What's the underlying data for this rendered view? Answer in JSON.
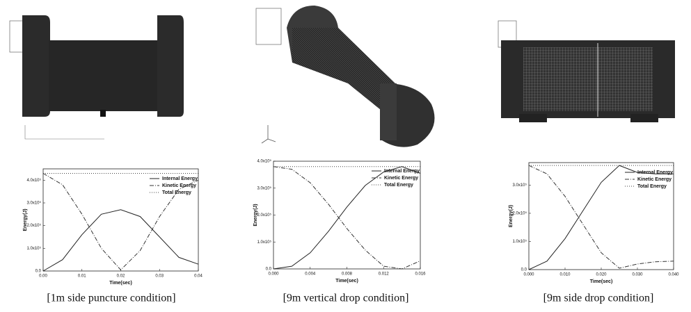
{
  "chart_data": [
    {
      "type": "line",
      "caption": "[1m side puncture condition]",
      "xlabel": "Time(sec)",
      "ylabel": "Energy(J)",
      "x": [
        0,
        0.005,
        0.01,
        0.015,
        0.02,
        0.025,
        0.03,
        0.035,
        0.04
      ],
      "xlim": [
        0,
        0.04
      ],
      "xticks": [
        {
          "value": 0,
          "label": "0.00"
        },
        {
          "value": 0.01,
          "label": "0.01"
        },
        {
          "value": 0.02,
          "label": "0.02"
        },
        {
          "value": 0.03,
          "label": "0.03"
        },
        {
          "value": 0.04,
          "label": "0.04"
        }
      ],
      "ylim": [
        0,
        450000
      ],
      "yticks": [
        {
          "value": 0,
          "label": "0.0"
        },
        {
          "value": 100000,
          "label": "1.0x10⁵"
        },
        {
          "value": 200000,
          "label": "2.0x10⁵"
        },
        {
          "value": 300000,
          "label": "3.0x10⁵"
        },
        {
          "value": 400000,
          "label": "4.0x10⁵"
        }
      ],
      "series": [
        {
          "name": "Internal Energy",
          "color": "#222222",
          "values": [
            0,
            50000,
            160000,
            250000,
            270000,
            240000,
            150000,
            60000,
            30000
          ]
        },
        {
          "name": "Kinetic Energy",
          "color": "#333333",
          "values": [
            430000,
            380000,
            250000,
            100000,
            5000,
            90000,
            240000,
            360000,
            400000
          ]
        },
        {
          "name": "Total Energy",
          "color": "#444444",
          "values": [
            430000,
            430000,
            430000,
            430000,
            430000,
            430000,
            430000,
            430000,
            430000
          ]
        }
      ]
    },
    {
      "type": "line",
      "caption": "[9m vertical drop condition]",
      "xlabel": "Time(sec)",
      "ylabel": "Energy(J)",
      "x": [
        0,
        0.002,
        0.004,
        0.006,
        0.008,
        0.01,
        0.012,
        0.014,
        0.016
      ],
      "xlim": [
        0,
        0.016
      ],
      "xticks": [
        {
          "value": 0,
          "label": "0.000"
        },
        {
          "value": 0.004,
          "label": "0.004"
        },
        {
          "value": 0.008,
          "label": "0.008"
        },
        {
          "value": 0.012,
          "label": "0.012"
        },
        {
          "value": 0.016,
          "label": "0.016"
        }
      ],
      "ylim": [
        0,
        400000
      ],
      "yticks": [
        {
          "value": 0,
          "label": "0.0"
        },
        {
          "value": 100000,
          "label": "1.0x10⁵"
        },
        {
          "value": 200000,
          "label": "2.0x10⁵"
        },
        {
          "value": 300000,
          "label": "3.0x10⁵"
        },
        {
          "value": 400000,
          "label": "4.0x10⁵"
        }
      ],
      "series": [
        {
          "name": "Internal Energy",
          "color": "#222222",
          "values": [
            0,
            10000,
            60000,
            140000,
            230000,
            310000,
            360000,
            380000,
            355000
          ]
        },
        {
          "name": "Kinetic Energy",
          "color": "#333333",
          "values": [
            380000,
            370000,
            320000,
            240000,
            150000,
            70000,
            10000,
            0,
            30000
          ]
        },
        {
          "name": "Total Energy",
          "color": "#444444",
          "values": [
            380000,
            380000,
            380000,
            380000,
            380000,
            380000,
            380000,
            380000,
            380000
          ]
        }
      ]
    },
    {
      "type": "line",
      "caption": "[9m side drop condition]",
      "xlabel": "Time(sec)",
      "ylabel": "Energy(J)",
      "x": [
        0,
        0.005,
        0.01,
        0.015,
        0.02,
        0.025,
        0.03,
        0.035,
        0.04
      ],
      "xlim": [
        0,
        0.04
      ],
      "xticks": [
        {
          "value": 0,
          "label": "0.000"
        },
        {
          "value": 0.01,
          "label": "0.010"
        },
        {
          "value": 0.02,
          "label": "0.020"
        },
        {
          "value": 0.03,
          "label": "0.030"
        },
        {
          "value": 0.04,
          "label": "0.040"
        }
      ],
      "ylim": [
        0,
        380000
      ],
      "yticks": [
        {
          "value": 0,
          "label": "0.0"
        },
        {
          "value": 100000,
          "label": "1.0x10⁵"
        },
        {
          "value": 200000,
          "label": "2.0x10⁵"
        },
        {
          "value": 300000,
          "label": "3.0x10⁵"
        }
      ],
      "series": [
        {
          "name": "Internal Energy",
          "color": "#222222",
          "values": [
            0,
            30000,
            110000,
            210000,
            310000,
            370000,
            345000,
            340000,
            340000
          ]
        },
        {
          "name": "Kinetic Energy",
          "color": "#333333",
          "values": [
            370000,
            340000,
            260000,
            160000,
            60000,
            5000,
            20000,
            28000,
            30000
          ]
        },
        {
          "name": "Total Energy",
          "color": "#444444",
          "values": [
            370000,
            370000,
            370000,
            370000,
            370000,
            370000,
            370000,
            370000,
            370000
          ]
        }
      ]
    }
  ]
}
